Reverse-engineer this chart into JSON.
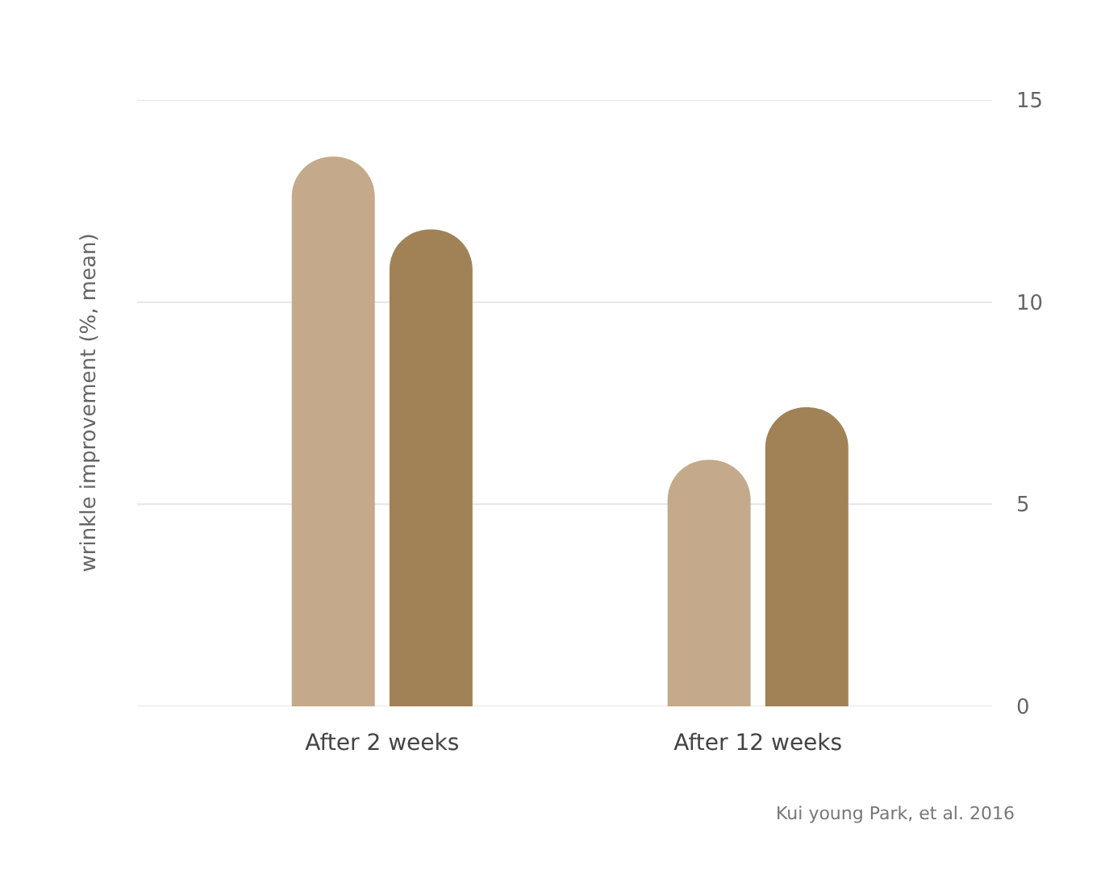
{
  "chart_data": {
    "type": "bar",
    "categories": [
      "After 2 weeks",
      "After 12 weeks"
    ],
    "series": [
      {
        "color": "#c4a98a",
        "values": [
          13.6,
          6.1
        ]
      },
      {
        "color": "#a08256",
        "values": [
          11.8,
          7.4
        ]
      }
    ],
    "ylabel": "wrinkle improvement (%, mean)",
    "ylim": [
      0,
      15
    ],
    "yticks": [
      0,
      5,
      10,
      15
    ],
    "grid": "y",
    "annotations": [
      "Kui young Park, et al. 2016"
    ]
  }
}
